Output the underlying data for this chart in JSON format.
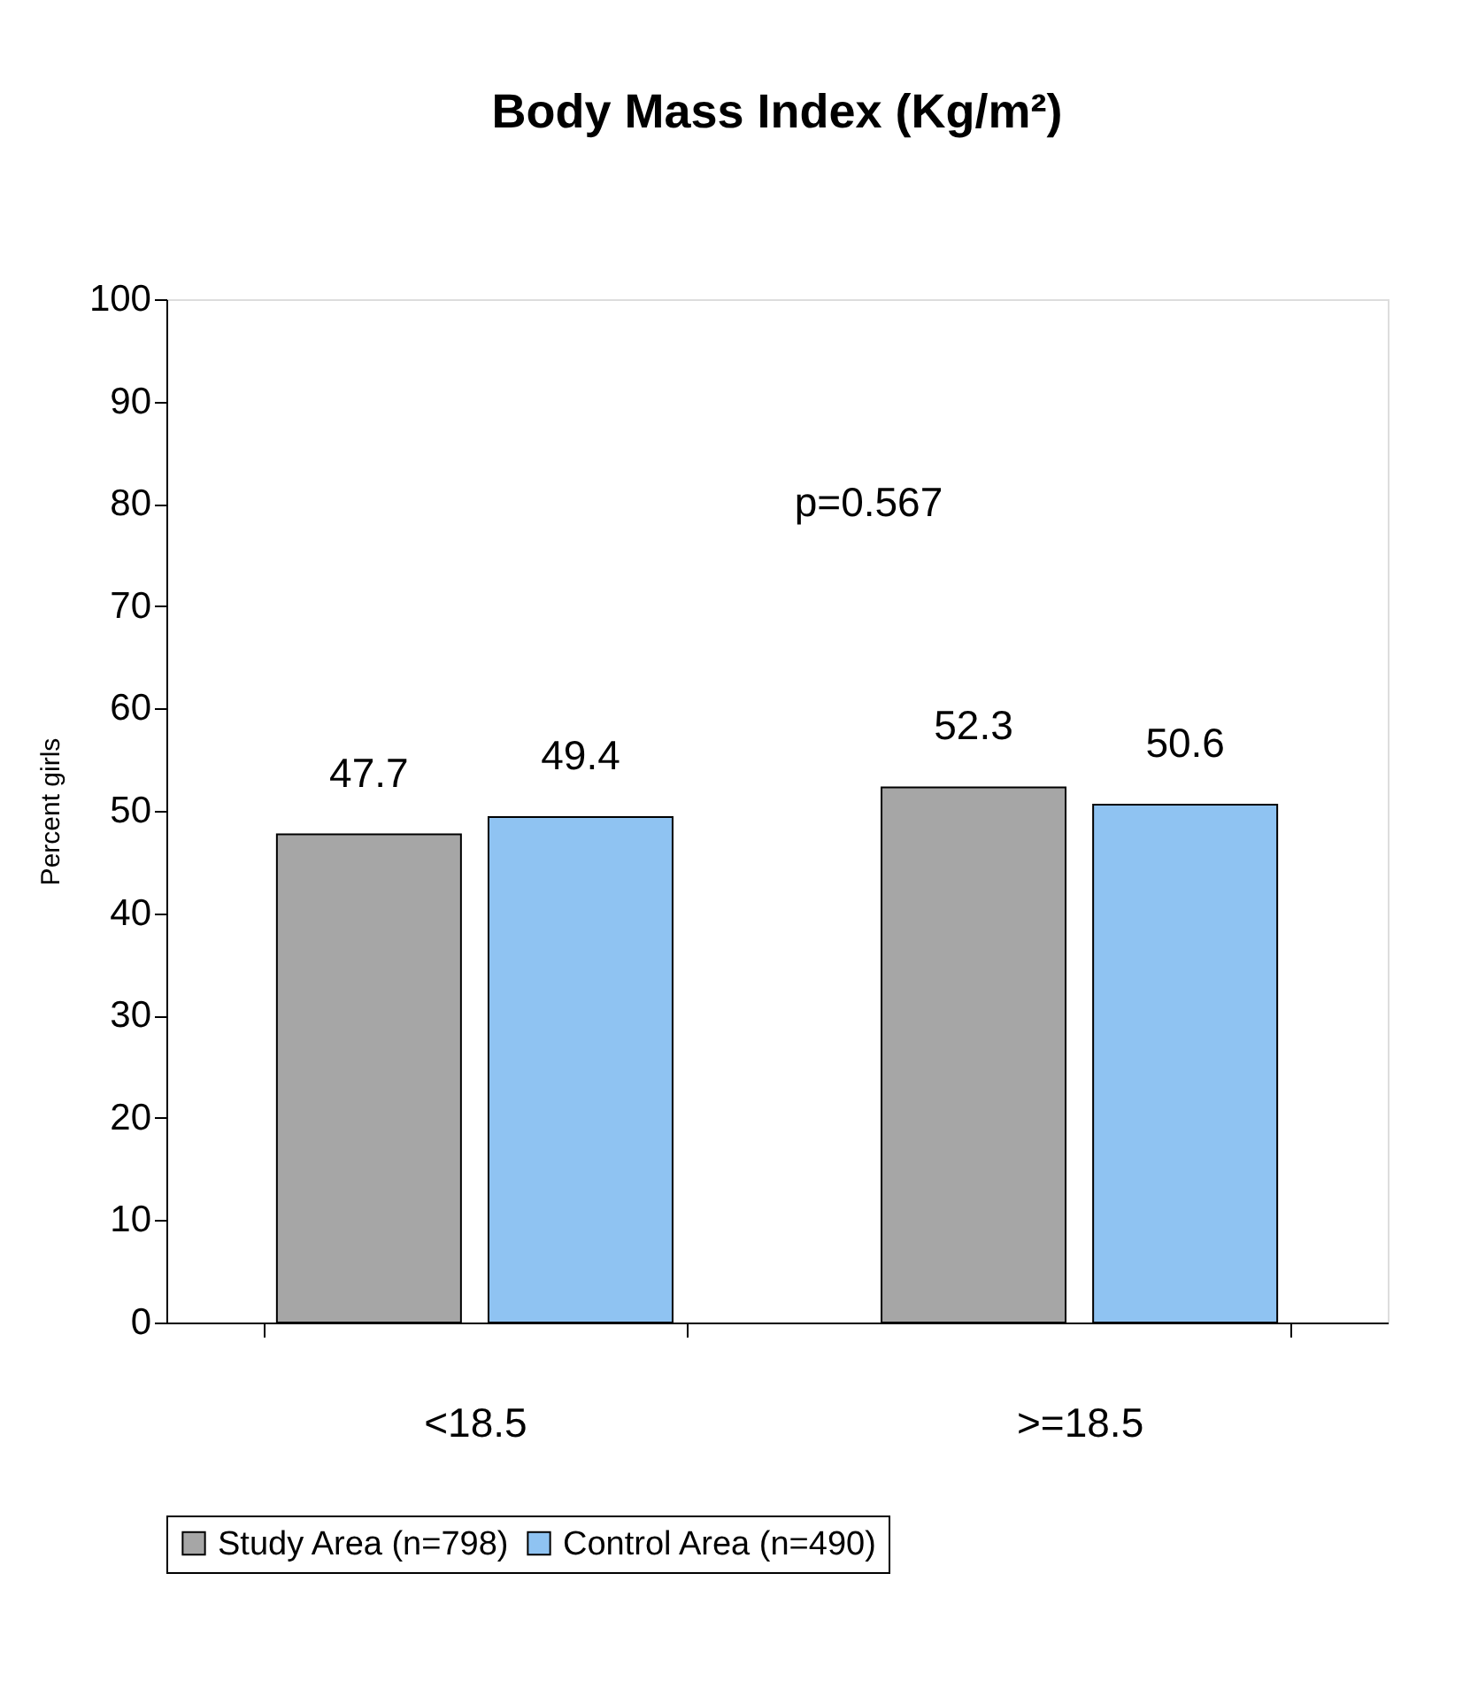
{
  "chart_data": {
    "type": "bar",
    "title": "Body Mass Index (Kg/m²)",
    "ylabel": "Percent girls",
    "categories": [
      "<18.5",
      ">=18.5"
    ],
    "series": [
      {
        "name": "Study Area (n=798)",
        "color": "#a6a6a6",
        "values": [
          47.7,
          52.3
        ]
      },
      {
        "name": "Control Area (n=490)",
        "color": "#8fc3f2",
        "values": [
          49.4,
          50.6
        ]
      }
    ],
    "ylim": [
      0,
      100
    ],
    "yticks": [
      0,
      10,
      20,
      30,
      40,
      50,
      60,
      70,
      80,
      90,
      100
    ],
    "data_labels": true,
    "legend": "bottom",
    "grid": false,
    "annotations": [
      "p=0.567"
    ]
  }
}
